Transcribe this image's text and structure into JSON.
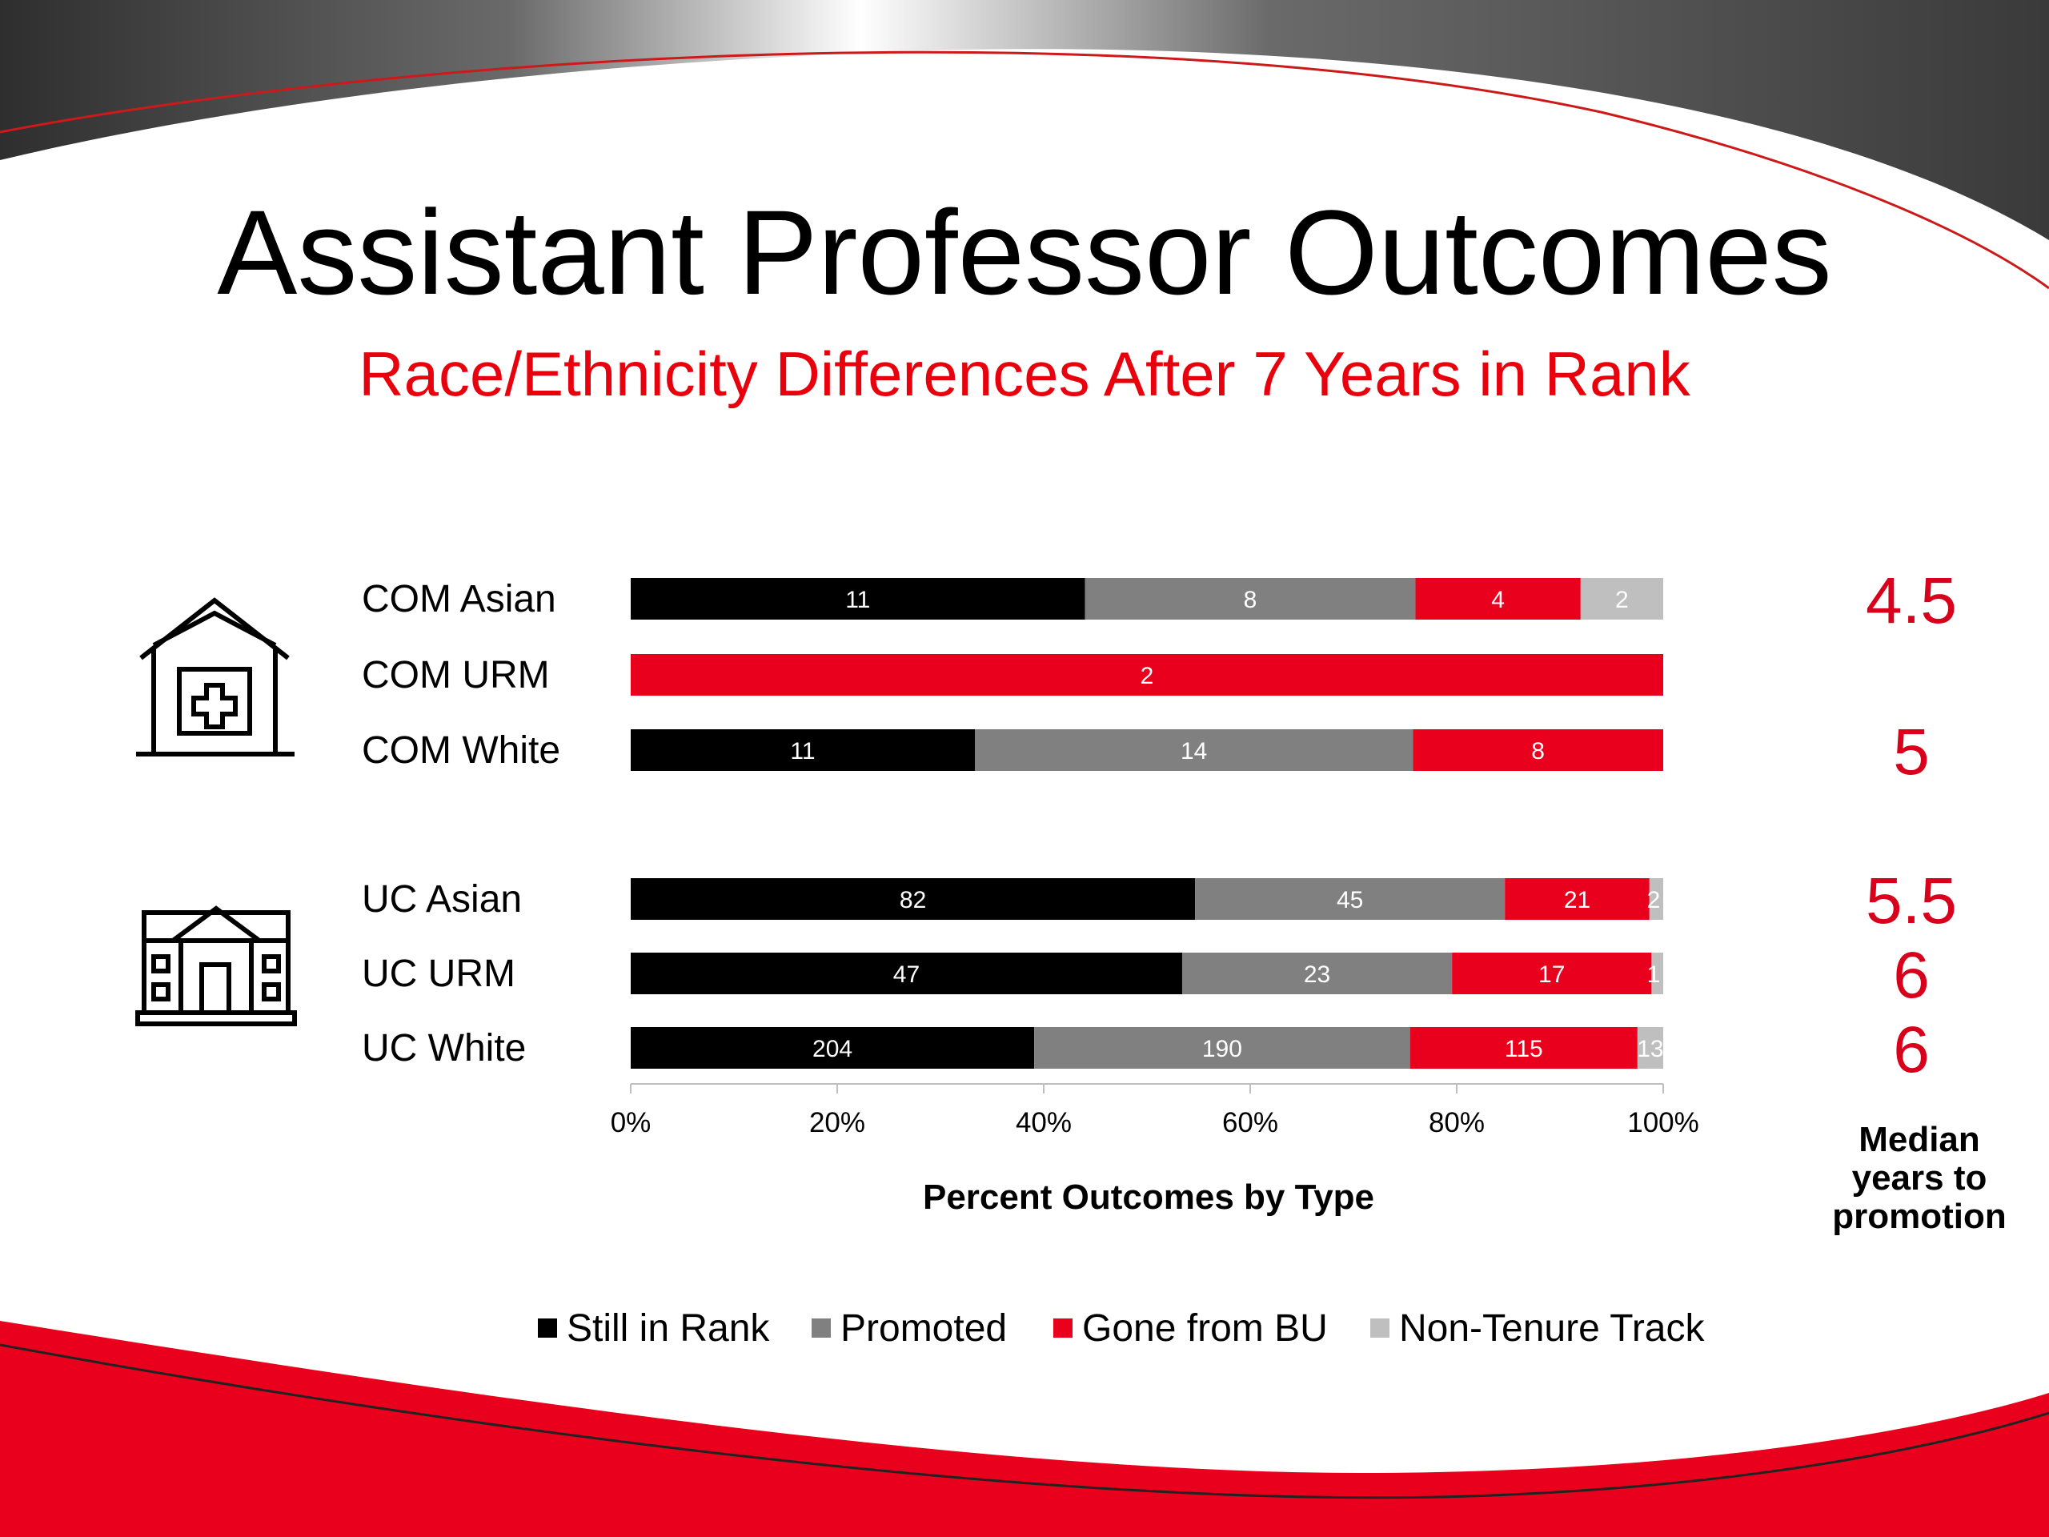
{
  "header": {
    "title": "Assistant Professor Outcomes",
    "subtitle": "Race/Ethnicity Differences After 7 Years in Rank"
  },
  "icons": {
    "top_group": "hospital-icon",
    "bottom_group": "university-building-icon"
  },
  "colors": {
    "Still in Rank": "#000000",
    "Promoted": "#808080",
    "Gone from BU": "#e8001c",
    "Non-Tenure Track": "#bfbfbf",
    "title_accent": "#e8000d",
    "median": "#d8001a"
  },
  "median_caption": [
    "Median",
    "years to",
    "promotion"
  ],
  "chart_data": {
    "type": "bar",
    "orientation": "horizontal",
    "stacked": "percent",
    "categories": [
      "COM Asian",
      "COM URM",
      "COM White",
      "UC Asian",
      "UC URM",
      "UC White"
    ],
    "series": [
      {
        "name": "Still in Rank",
        "values": [
          11,
          0,
          11,
          82,
          47,
          204
        ]
      },
      {
        "name": "Promoted",
        "values": [
          8,
          0,
          14,
          45,
          23,
          190
        ]
      },
      {
        "name": "Gone from BU",
        "values": [
          4,
          2,
          8,
          21,
          17,
          115
        ]
      },
      {
        "name": "Non-Tenure Track",
        "values": [
          2,
          0,
          0,
          2,
          1,
          13
        ]
      }
    ],
    "xlabel": "Percent Outcomes by Type",
    "xticks": [
      "0%",
      "20%",
      "40%",
      "60%",
      "80%",
      "100%"
    ],
    "xlim": [
      0,
      100
    ],
    "legend_position": "bottom",
    "median_years_to_promotion": [
      "4.5",
      "",
      "5",
      "5.5",
      "6",
      "6"
    ]
  }
}
